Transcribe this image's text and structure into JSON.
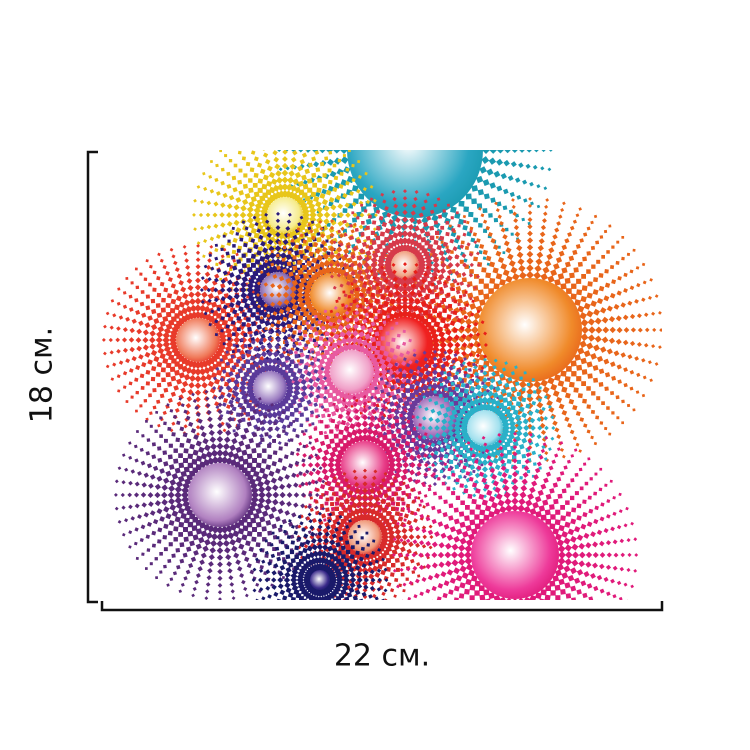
{
  "dimensions": {
    "height_label": "18 см.",
    "width_label": "22 см."
  },
  "artwork": {
    "description_name": "radial-burst-pattern",
    "bursts": [
      {
        "name": "teal-burst",
        "color": "#1a9ab0",
        "core": "#2aa6c2"
      },
      {
        "name": "yellow-burst",
        "color": "#e8c61a",
        "core": "#f6ec8c"
      },
      {
        "name": "orange-burst-large",
        "color": "#e8651a",
        "core": "#f08a2a"
      },
      {
        "name": "coral-burst",
        "color": "#e83a2a",
        "core": "#f07a5a"
      },
      {
        "name": "lavender-burst",
        "color": "#2a1a7a",
        "core": "#8a6ab0"
      },
      {
        "name": "orange-burst-small",
        "color": "#e8651a",
        "core": "#f08a2a"
      },
      {
        "name": "peach-burst",
        "color": "#d63a4a",
        "core": "#f0a080"
      },
      {
        "name": "red-burst",
        "color": "#e8201a",
        "core": "#f02020"
      },
      {
        "name": "pink-burst",
        "color": "#e85aa0",
        "core": "#f0a0c8"
      },
      {
        "name": "purple-burst-mid",
        "color": "#5a3a9a",
        "core": "#9a7ac0"
      },
      {
        "name": "violet-burst",
        "color": "#6a3a9a",
        "core": "#a06ab8"
      },
      {
        "name": "cyan-burst",
        "color": "#2ab0c8",
        "core": "#a0e0ee"
      },
      {
        "name": "magenta-burst",
        "color": "#d81a6a",
        "core": "#e8408a"
      },
      {
        "name": "purple-burst-large",
        "color": "#5a2a7a",
        "core": "#b080c0"
      },
      {
        "name": "salmon-burst",
        "color": "#d82a2a",
        "core": "#f09878"
      },
      {
        "name": "hotpink-burst",
        "color": "#e01a7a",
        "core": "#ee3a9a"
      },
      {
        "name": "navy-burst",
        "color": "#1a1a6a",
        "core": "#3a2a8a"
      }
    ]
  }
}
